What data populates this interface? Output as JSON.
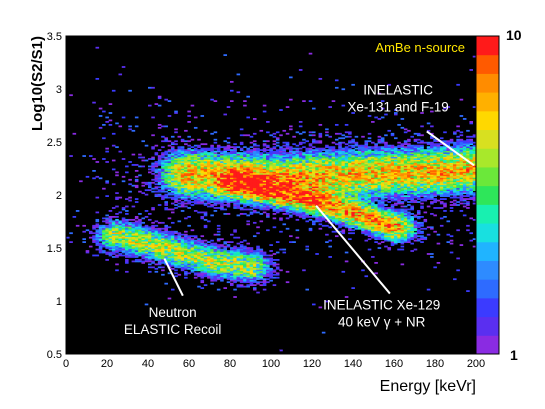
{
  "chart_data": {
    "type": "heatmap",
    "title": "",
    "xlabel": "Energy [keVr]",
    "ylabel": "Log10(S2/S1)",
    "xlim": [
      0,
      200
    ],
    "ylim": [
      0.5,
      3.5
    ],
    "x_ticks": [
      "0",
      "20",
      "40",
      "60",
      "80",
      "100",
      "120",
      "140",
      "160",
      "180",
      "200"
    ],
    "y_ticks": [
      "0.5",
      "1",
      "1.5",
      "2",
      "2.5",
      "3",
      "3.5"
    ],
    "colorbar": {
      "min_label": "1",
      "max_label": "10",
      "min": 1,
      "max": 10
    },
    "background": "#000000",
    "source_label": "AmBe n-source",
    "source_color": "#ffe600",
    "clusters": [
      {
        "name": "elastic",
        "points": [
          [
            25,
            1.62
          ],
          [
            45,
            1.52
          ],
          [
            70,
            1.38
          ],
          [
            90,
            1.32
          ]
        ],
        "sigma_y": 0.09,
        "sigma_e": 9,
        "peak": 5
      },
      {
        "name": "inelastic-129",
        "points": [
          [
            85,
            2.12
          ],
          [
            105,
            2.02
          ],
          [
            125,
            1.93
          ],
          [
            145,
            1.8
          ],
          [
            160,
            1.7
          ]
        ],
        "sigma_y": 0.08,
        "sigma_e": 9,
        "peak": 8
      },
      {
        "name": "inelastic-131",
        "points": [
          [
            60,
            2.2
          ],
          [
            100,
            2.16
          ],
          [
            140,
            2.2
          ],
          [
            175,
            2.22
          ],
          [
            200,
            2.25
          ]
        ],
        "sigma_y": 0.13,
        "sigma_e": 12,
        "peak": 7
      }
    ],
    "annotations": [
      {
        "lines": [
          "INELASTIC",
          "Xe-131 and F-19"
        ],
        "text_x": 162,
        "text_y": 2.95,
        "arrow_from": [
          176,
          2.6
        ],
        "arrow_to": [
          199,
          2.28
        ]
      },
      {
        "lines": [
          "INELASTIC Xe-129",
          "40 keV γ + NR"
        ],
        "text_x": 154,
        "text_y": 0.92,
        "arrow_from": [
          158,
          1.07
        ],
        "arrow_to": [
          122,
          1.9
        ]
      },
      {
        "lines": [
          "Neutron",
          "ELASTIC Recoil"
        ],
        "text_x": 52,
        "text_y": 0.85,
        "arrow_from": [
          57,
          1.05
        ],
        "arrow_to": [
          48,
          1.4
        ]
      }
    ]
  }
}
